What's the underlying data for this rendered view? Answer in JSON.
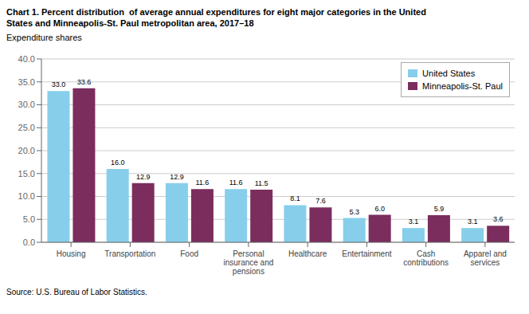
{
  "chart_data": {
    "type": "bar",
    "title": "Chart 1. Percent distribution  of average annual expenditures for eight major categories in the United\nStates and Minneapolis-St. Paul metropolitan area, 2017–18",
    "subtitle": "Expenditure shares",
    "source": "Source: U.S. Bureau of Labor Statistics.",
    "categories": [
      "Housing",
      "Transportation",
      "Food",
      "Personal\ninsurance and\npensions",
      "Healthcare",
      "Entertainment",
      "Cash\ncontributions",
      "Apparel and\nservices"
    ],
    "series": [
      {
        "name": "United States",
        "color": "#87CEEB",
        "values": [
          33.0,
          16.0,
          12.9,
          11.6,
          8.1,
          5.3,
          3.1,
          3.1
        ],
        "value_labels": [
          "33.0",
          "16.0",
          "12.9",
          "11.6",
          "8.1",
          "5.3",
          "3.1",
          "3.1"
        ]
      },
      {
        "name": "Minneapolis-St. Paul",
        "color": "#7B2D5E",
        "values": [
          33.6,
          12.9,
          11.6,
          11.5,
          7.6,
          6.0,
          5.9,
          3.6
        ],
        "value_labels": [
          "33.6",
          "12.9",
          "11.6",
          "11.5",
          "7.6",
          "6.0",
          "5.9",
          "3.6"
        ]
      }
    ],
    "ylim": [
      0,
      40
    ],
    "yticks": [
      {
        "value": 0,
        "label": "0.0"
      },
      {
        "value": 5,
        "label": "5.0"
      },
      {
        "value": 10,
        "label": "10.0"
      },
      {
        "value": 15,
        "label": "15.0"
      },
      {
        "value": 20,
        "label": "20.0"
      },
      {
        "value": 25,
        "label": "25.0"
      },
      {
        "value": 30,
        "label": "30.0"
      },
      {
        "value": 35,
        "label": "35.0"
      },
      {
        "value": 40,
        "label": "40.0"
      }
    ],
    "grid": true,
    "legend": "upper right",
    "data_labels": true
  }
}
